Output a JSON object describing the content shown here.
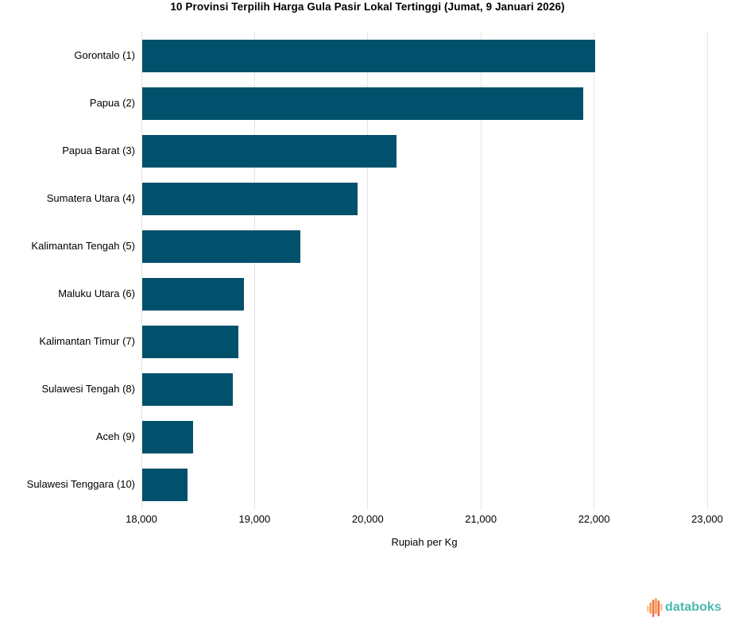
{
  "chart_data": {
    "type": "bar",
    "orientation": "horizontal",
    "title": "10 Provinsi Terpilih Harga Gula Pasir Lokal Tertinggi (Jumat, 9 Januari 2026)",
    "categories": [
      "Gorontalo (1)",
      "Papua (2)",
      "Papua Barat (3)",
      "Sumatera Utara (4)",
      "Kalimantan Tengah (5)",
      "Maluku Utara (6)",
      "Kalimantan Timur (7)",
      "Sulawesi Tengah (8)",
      "Aceh (9)",
      "Sulawesi Tenggara (10)"
    ],
    "values": [
      22000,
      21900,
      20250,
      19900,
      19400,
      18900,
      18850,
      18800,
      18450,
      18400
    ],
    "xlabel": "Rupiah per Kg",
    "ylabel": "",
    "xlim": [
      18000,
      23000
    ],
    "xticks": [
      18000,
      19000,
      20000,
      21000,
      22000,
      23000
    ],
    "xtick_labels": [
      "18,000",
      "19,000",
      "20,000",
      "21,000",
      "22,000",
      "23,000"
    ],
    "grid": true,
    "legend": "none",
    "bar_color": "#02516C",
    "gridline_color": "#e4e4e4",
    "text_color": "#000000"
  },
  "branding": {
    "logo_text": "databoks",
    "logo_text_color": "#48b8af",
    "icon_colors": {
      "salmon": "#ee6a4e",
      "orange": "#f49b3d",
      "peach": "#f6c39c"
    }
  }
}
